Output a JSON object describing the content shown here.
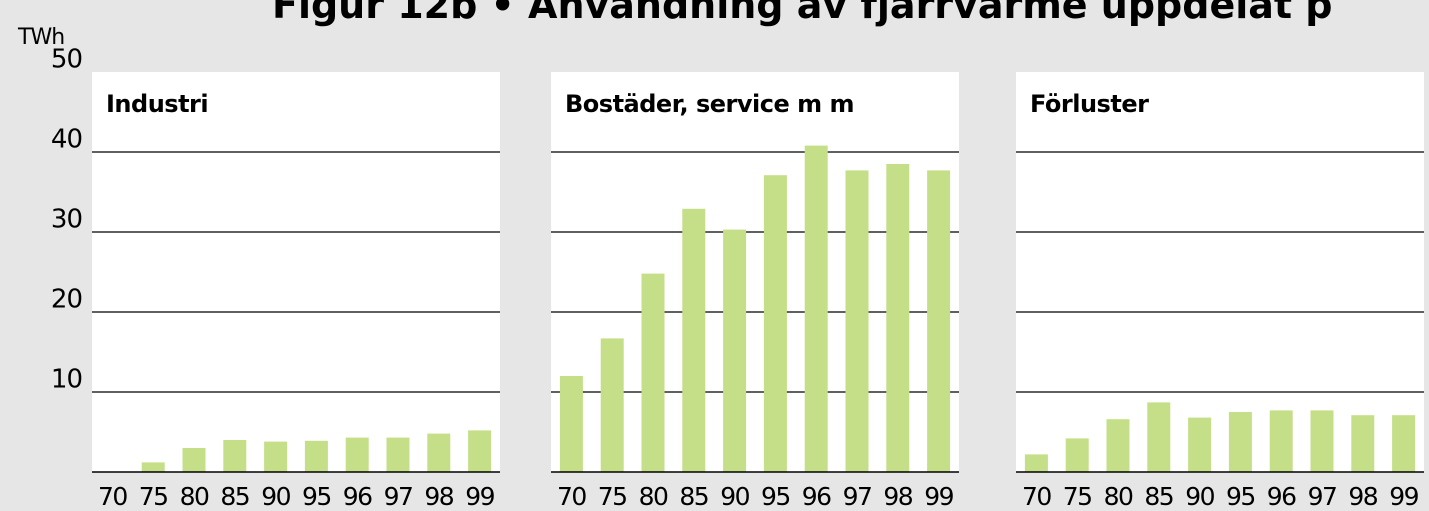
{
  "figure": {
    "title": "Figur 12b • Användning av fjärrvärme uppdelat p",
    "unit": "TWh"
  },
  "chart_data": [
    {
      "type": "bar",
      "title": "Industri",
      "categories": [
        "70",
        "75",
        "80",
        "85",
        "90",
        "95",
        "96",
        "97",
        "98",
        "99"
      ],
      "values": [
        0,
        1.2,
        3.0,
        4.0,
        3.8,
        3.9,
        4.3,
        4.3,
        4.8,
        5.2
      ],
      "color": "#c5df88",
      "ylim": [
        0,
        50
      ],
      "yticks": [
        10,
        20,
        30,
        40,
        50
      ],
      "grid": true
    },
    {
      "type": "bar",
      "title": "Bostäder, service m m",
      "categories": [
        "70",
        "75",
        "80",
        "85",
        "90",
        "95",
        "96",
        "97",
        "98",
        "99"
      ],
      "values": [
        12.0,
        16.7,
        24.8,
        32.9,
        30.3,
        37.1,
        40.8,
        37.7,
        38.5,
        37.7
      ],
      "color": "#c5df88",
      "ylim": [
        0,
        50
      ],
      "yticks": [
        10,
        20,
        30,
        40,
        50
      ],
      "grid": true
    },
    {
      "type": "bar",
      "title": "Förluster",
      "categories": [
        "70",
        "75",
        "80",
        "85",
        "90",
        "95",
        "96",
        "97",
        "98",
        "99"
      ],
      "values": [
        2.2,
        4.2,
        6.6,
        8.7,
        6.8,
        7.5,
        7.7,
        7.7,
        7.1,
        7.1
      ],
      "color": "#c5df88",
      "ylim": [
        0,
        50
      ],
      "yticks": [
        10,
        20,
        30,
        40,
        50
      ],
      "grid": true
    }
  ]
}
